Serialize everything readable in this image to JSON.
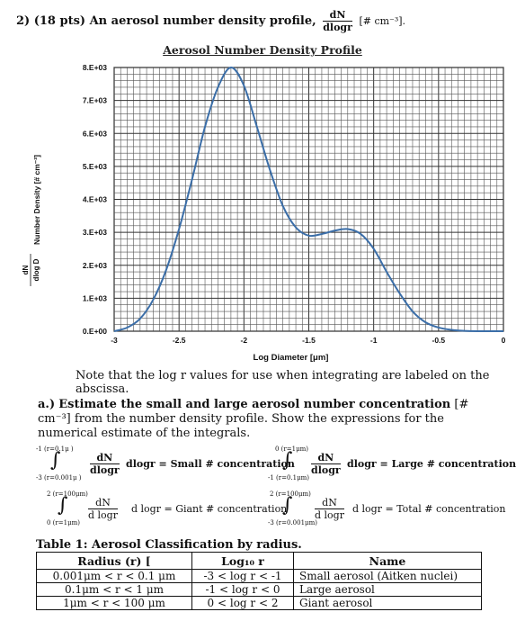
{
  "question": {
    "number_points": "2) (18 pts) An aerosol number density profile,",
    "frac_num": "dN",
    "frac_den": "dlogr",
    "units": "[# cm⁻³]."
  },
  "note": "Note that the log r values for use when integrating are labeled on the abscissa.",
  "part_a": {
    "label": "a.)",
    "bold_text": "Estimate the small and large aerosol number concentration",
    "unit": "[# cm⁻³]",
    "rest": "from the number density profile. Show the expressions for the numerical estimate of the integrals."
  },
  "integrals": [
    {
      "top": "-1 (r=0.1μ )",
      "bottom": "-3 (r=0.001μ )",
      "num": "dN",
      "den": "dlogr",
      "rhs": "dlogr = Small # concentration"
    },
    {
      "top": "0 (r=1μm)",
      "bottom": "-1 (r=0.1μm)",
      "num": "dN",
      "den": "dlogr",
      "rhs": "dlogr = Large # concentration"
    },
    {
      "top": "2 (r=100μm)",
      "bottom": "0 (r=1μm)",
      "num": "dN",
      "den": "d logr",
      "rhs": "d logr = Giant # concentration"
    },
    {
      "top": "2 (r=100μm)",
      "bottom": "-3 (r=0.001μm)",
      "num": "dN",
      "den": "d logr",
      "rhs": "d logr = Total # concentration"
    }
  ],
  "table": {
    "title": "Table 1: Aerosol Classification by radius.",
    "headers": [
      "Radius (r) [",
      "Log₁₀ r",
      "Name"
    ],
    "rows": [
      [
        "0.001μm < r < 0.1 μm",
        "-3 < log r < -1",
        "Small aerosol (Aitken nuclei)"
      ],
      [
        "0.1μm < r < 1 μm",
        "-1 < log r < 0",
        "Large aerosol"
      ],
      [
        "1μm < r < 100 μm",
        "0 < log r < 2",
        "Giant aerosol"
      ]
    ]
  },
  "chart_data": {
    "type": "line",
    "title": "Aerosol Number Density Profile",
    "xlabel": "Log Diameter [μm]",
    "ylabel": "Number Density [# cm⁻³]",
    "ylabel_frac_num": "dN",
    "ylabel_frac_den": "dlog D",
    "xlim": [
      -3,
      0
    ],
    "ylim": [
      0,
      8000
    ],
    "x_ticks": [
      "-3",
      "-2.5",
      "-2",
      "-1.5",
      "-1",
      "-0.5",
      "0"
    ],
    "y_ticks": [
      "0.E+00",
      "1.E+03",
      "2.E+03",
      "3.E+03",
      "4.E+03",
      "5.E+03",
      "6.E+03",
      "7.E+03",
      "8.E+03"
    ],
    "grid": true,
    "series": [
      {
        "x": [
          -3.0,
          -2.9,
          -2.8,
          -2.7,
          -2.6,
          -2.5,
          -2.4,
          -2.3,
          -2.2,
          -2.1,
          -2.0,
          -1.9,
          -1.8,
          -1.7,
          -1.6,
          -1.5,
          -1.4,
          -1.3,
          -1.2,
          -1.1,
          -1.0,
          -0.9,
          -0.8,
          -0.7,
          -0.6,
          -0.5,
          -0.4,
          -0.3,
          -0.2,
          -0.1,
          0.0
        ],
        "y": [
          0,
          110,
          380,
          950,
          1850,
          3100,
          4600,
          6200,
          7400,
          8000,
          7450,
          6200,
          4900,
          3800,
          3150,
          2900,
          2950,
          3050,
          3100,
          2950,
          2500,
          1800,
          1150,
          600,
          270,
          110,
          40,
          10,
          0,
          0,
          0
        ],
        "color": "#3b6ea8"
      }
    ],
    "line_color": "#3b6ea8"
  }
}
